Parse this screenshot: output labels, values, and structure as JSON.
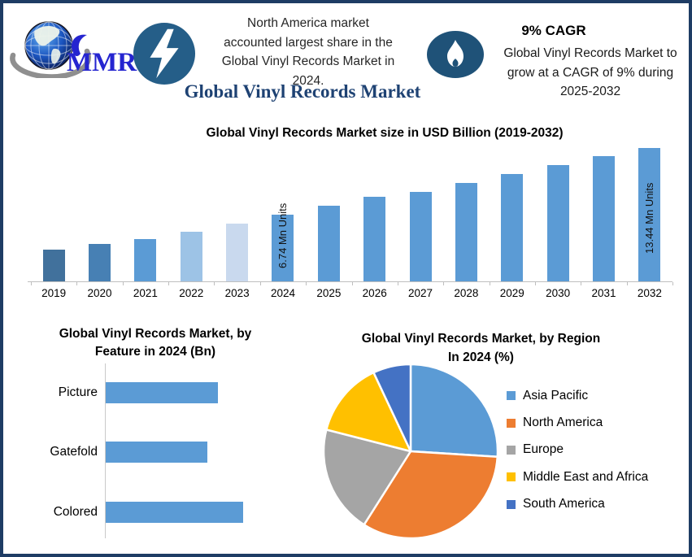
{
  "header": {
    "logo": {
      "text": "MMR"
    },
    "stat_callout": "North America market\naccounted largest share in the\nGlobal Vinyl Records Market in\n2024.",
    "main_title": "Global Vinyl Records Market",
    "cagr_headline": "9% CAGR",
    "cagr_body": "Global Vinyl Records Market to\ngrow at a CAGR of 9% during\n2025-2032"
  },
  "colors": {
    "accent_navy": "#1E4273",
    "badge_blue": "#255E88",
    "flame_badge_blue": "#1F5278",
    "border_navy": "#1E3C64",
    "bar_blue": "#5B9BD5",
    "logo_blue": "#2525D0"
  },
  "chart_data": [
    {
      "id": "main_bar",
      "type": "bar",
      "title": "Global Vinyl Records Market size in USD Billion (2019-2032)",
      "categories": [
        "2019",
        "2020",
        "2021",
        "2022",
        "2023",
        "2024",
        "2025",
        "2026",
        "2027",
        "2028",
        "2029",
        "2030",
        "2031",
        "2032"
      ],
      "values": [
        3.2,
        3.8,
        4.3,
        5.0,
        5.8,
        6.74,
        7.6,
        8.5,
        9.0,
        9.9,
        10.8,
        11.7,
        12.6,
        13.44
      ],
      "bar_colors": [
        "#41719C",
        "#4780B4",
        "#5B9BD5",
        "#9DC3E6",
        "#C9D9EE",
        "#5B9BD5",
        "#5B9BD5",
        "#5B9BD5",
        "#5B9BD5",
        "#5B9BD5",
        "#5B9BD5",
        "#5B9BD5",
        "#5B9BD5",
        "#5B9BD5"
      ],
      "annotations": [
        {
          "category": "2024",
          "label": "6.74 Mn Units"
        },
        {
          "category": "2032",
          "label": "13.44 Mn Units"
        }
      ],
      "ylabel": "",
      "xlabel": "",
      "ylim": [
        0,
        14.1
      ],
      "grid": false,
      "y_axis_visible": false
    },
    {
      "id": "feature_bar",
      "type": "bar",
      "orientation": "horizontal",
      "title": "Global Vinyl Records Market, by\nFeature in 2024 (Bn)",
      "categories": [
        "Picture",
        "Gatefold",
        "Colored"
      ],
      "values": [
        2.2,
        2.0,
        2.7
      ],
      "bar_color": "#5B9BD5",
      "xlim": [
        0,
        2.7
      ],
      "grid": false,
      "value_axis_visible": false
    },
    {
      "id": "region_pie",
      "type": "pie",
      "title": "Global Vinyl Records Market, by Region\nIn 2024 (%)",
      "labels": [
        "Asia Pacific",
        "North America",
        "Europe",
        "Middle East and Africa",
        "South America"
      ],
      "values": [
        26,
        33,
        20,
        14,
        7
      ],
      "colors": [
        "#5B9BD5",
        "#ED7D31",
        "#A5A5A5",
        "#FFC000",
        "#4472C4"
      ],
      "legend_position": "right",
      "start_angle_deg": 0,
      "direction": "clockwise"
    }
  ]
}
